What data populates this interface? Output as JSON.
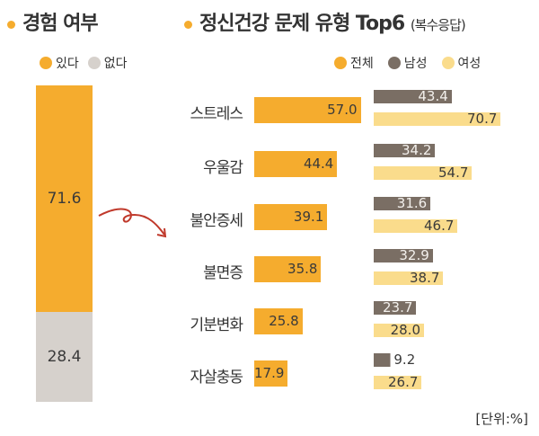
{
  "left": {
    "title": "경험 여부",
    "legend": [
      {
        "label": "있다",
        "color": "#F5AC2E"
      },
      {
        "label": "없다",
        "color": "#D6D1CC"
      }
    ]
  },
  "right": {
    "title": "정신건강 문제 유형 Top6",
    "title_note": "(복수응답)",
    "legend": [
      {
        "label": "전체",
        "color": "#F5AC2E"
      },
      {
        "label": "남성",
        "color": "#7A6E64"
      },
      {
        "label": "여성",
        "color": "#FADC8C"
      }
    ]
  },
  "unit": "[단위:%]",
  "chart_data": [
    {
      "type": "bar",
      "stacked": true,
      "title": "경험 여부",
      "categories": [
        "있다",
        "없다"
      ],
      "values": [
        71.6,
        28.4
      ],
      "labels": [
        "71.6",
        "28.4"
      ]
    },
    {
      "type": "bar",
      "orientation": "horizontal",
      "title": "정신건강 문제 유형 Top6 (복수응답)",
      "categories": [
        "스트레스",
        "우울감",
        "불안증세",
        "불면증",
        "기분변화",
        "자살충동"
      ],
      "series": [
        {
          "name": "전체",
          "values": [
            57.0,
            44.4,
            39.1,
            35.8,
            25.8,
            17.9
          ],
          "labels": [
            "57.0",
            "44.4",
            "39.1",
            "35.8",
            "25.8",
            "17.9"
          ]
        },
        {
          "name": "남성",
          "values": [
            43.4,
            34.2,
            31.6,
            32.9,
            23.7,
            9.2
          ],
          "labels": [
            "43.4",
            "34.2",
            "31.6",
            "32.9",
            "23.7",
            "9.2"
          ]
        },
        {
          "name": "여성",
          "values": [
            70.7,
            54.7,
            46.7,
            38.7,
            28.0,
            26.7
          ],
          "labels": [
            "70.7",
            "54.7",
            "46.7",
            "38.7",
            "28.0",
            "26.7"
          ]
        }
      ],
      "unit": "%"
    }
  ]
}
